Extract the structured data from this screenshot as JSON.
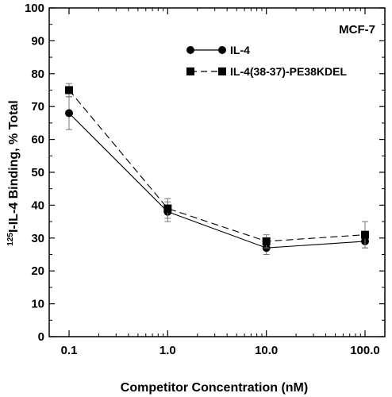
{
  "chart_data": {
    "type": "line",
    "xscale": "log",
    "x": [
      0.1,
      1.0,
      10.0,
      100.0
    ],
    "x_tick_labels": [
      "0.1",
      "1.0",
      "10.0",
      "100.0"
    ],
    "xlim": [
      0.1,
      100
    ],
    "ylim": [
      0,
      100
    ],
    "y_ticks": [
      0,
      10,
      20,
      30,
      40,
      50,
      60,
      70,
      80,
      90,
      100
    ],
    "xlabel": "Competitor Concentration (nM)",
    "ylabel_sup": "125",
    "ylabel": "I-IL-4 Binding, % Total",
    "annotation": "MCF-7",
    "legend_position": "top-right",
    "grid": false,
    "series": [
      {
        "name": "IL-4",
        "marker": "circle",
        "line_style": "solid",
        "values": [
          68,
          38,
          27,
          29
        ],
        "error": [
          5,
          3,
          2,
          2
        ]
      },
      {
        "name": "IL-4(38-37)-PE38KDEL",
        "marker": "square",
        "line_style": "dashed",
        "values": [
          75,
          39,
          29,
          31
        ],
        "error": [
          2,
          3,
          2,
          4
        ]
      }
    ]
  }
}
